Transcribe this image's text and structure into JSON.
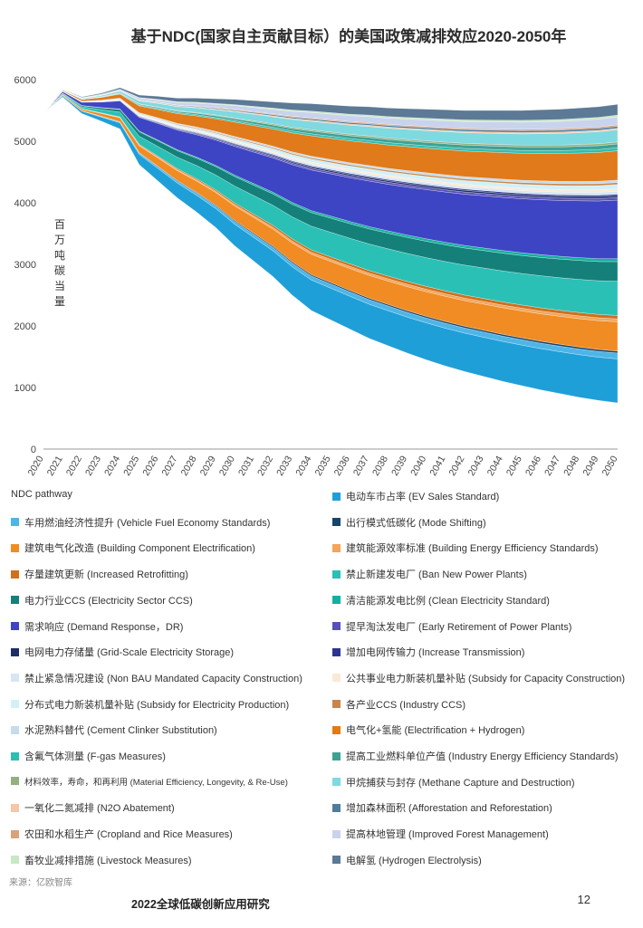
{
  "title": "基于NDC(国家自主贡献目标）的美国政策减排效应2020-2050年",
  "source": "来源：亿欧智库",
  "footer": "2022全球低碳创新应用研究",
  "page_number": "12",
  "chart_data": {
    "type": "area",
    "title": "基于NDC(国家自主贡献目标）的美国政策减排效应2020-2050年",
    "ylabel": "百万吨碳当量",
    "ylim": [
      0,
      6000
    ],
    "yticks": [
      0,
      1000,
      2000,
      3000,
      4000,
      5000,
      6000
    ],
    "x": [
      2020,
      2021,
      2022,
      2023,
      2024,
      2025,
      2026,
      2027,
      2028,
      2029,
      2030,
      2031,
      2032,
      2033,
      2034,
      2035,
      2036,
      2037,
      2038,
      2039,
      2040,
      2041,
      2042,
      2043,
      2044,
      2045,
      2046,
      2047,
      2048,
      2049,
      2050
    ],
    "top_envelope": [
      5450,
      5850,
      5720,
      5780,
      5870,
      5750,
      5730,
      5700,
      5700,
      5690,
      5680,
      5660,
      5640,
      5620,
      5610,
      5590,
      5570,
      5560,
      5540,
      5530,
      5520,
      5510,
      5500,
      5500,
      5500,
      5500,
      5510,
      5520,
      5540,
      5560,
      5600
    ],
    "baseline_pathway": [
      5450,
      5720,
      5450,
      5330,
      5200,
      4620,
      4350,
      4080,
      3850,
      3600,
      3300,
      3050,
      2800,
      2500,
      2250,
      2100,
      1950,
      1800,
      1680,
      1560,
      1450,
      1350,
      1260,
      1180,
      1100,
      1030,
      960,
      900,
      840,
      790,
      750
    ],
    "series": [
      {
        "name": "NDC pathway",
        "color": "#1f9fd8"
      },
      {
        "name": "电动车市占率 (EV Sales Standard)",
        "color": "#1f9fd8"
      },
      {
        "name": "车用燃油经济性提升 (Vehicle Fuel Economy Standards)",
        "color": "#4fb5e6"
      },
      {
        "name": "出行模式低碳化 (Mode Shifting)",
        "color": "#17446b"
      },
      {
        "name": "建筑电气化改造 (Building Component Electrification)",
        "color": "#f08c23"
      },
      {
        "name": "建筑能源效率标准 (Building Energy Efficiency Standards)",
        "color": "#f3a55a"
      },
      {
        "name": "存量建筑更新 (Increased Retrofitting)",
        "color": "#d0701c"
      },
      {
        "name": "禁止新建发电厂 (Ban New Power Plants)",
        "color": "#2ac0b5"
      },
      {
        "name": "电力行业CCS (Electricity Sector CCS)",
        "color": "#15807a"
      },
      {
        "name": "清洁能源发电比例 (Clean Electricity Standard)",
        "color": "#13b0a0"
      },
      {
        "name": "需求响应 (Demand Response，DR)",
        "color": "#3d45c4"
      },
      {
        "name": "提早淘汰发电厂 (Early Retirement of Power Plants)",
        "color": "#5a4fb8"
      },
      {
        "name": "电网电力存储量 (Grid-Scale Electricity Storage)",
        "color": "#1c2e66"
      },
      {
        "name": "增加电网传输力 (Increase Transmission)",
        "color": "#2b3590"
      },
      {
        "name": "禁止紧急情况建设 (Non BAU Mandated Capacity Construction)",
        "color": "#d6e6f5"
      },
      {
        "name": "公共事业电力新装机量补贴 (Subsidy for Capacity Construction)",
        "color": "#fbe9d6"
      },
      {
        "name": "分布式电力新装机量补贴 (Subsidy for Electricity Production)",
        "color": "#d2f1f7"
      },
      {
        "name": "各产业CCS (Industry CCS)",
        "color": "#c8864a"
      },
      {
        "name": "水泥熟料替代 (Cement Clinker Substitution)",
        "color": "#c5dced"
      },
      {
        "name": "电气化+氢能 (Electrification + Hydrogen)",
        "color": "#e07a1a"
      },
      {
        "name": "含氟气体测量 (F-gas Measures)",
        "color": "#2bbfb0"
      },
      {
        "name": "提高工业燃料单位产值 (Industry Energy Efficiency Standards)",
        "color": "#3fa195"
      },
      {
        "name": "材料效率，寿命，和再利用 (Material Efficiency, Longevity, & Re-Use)",
        "color": "#93b07f"
      },
      {
        "name": "甲烷捕获与封存 (Methane Capture and Destruction)",
        "color": "#7fd9e0"
      },
      {
        "name": "一氧化二氮减排 (N2O Abatement)",
        "color": "#f5c7a6"
      },
      {
        "name": "增加森林面积 (Afforestation and Reforestation)",
        "color": "#4f7d9a"
      },
      {
        "name": "农田和水稻生产 (Cropland and Rice Measures)",
        "color": "#d9a27a"
      },
      {
        "name": "提高林地管理 (Improved Forest Management)",
        "color": "#c9d3ee"
      },
      {
        "name": "畜牧业减排措施 (Livestock Measures)",
        "color": "#c8e8c3"
      },
      {
        "name": "电解氢 (Hydrogen Electrolysis)",
        "color": "#5c7995"
      }
    ],
    "legend_placement": "bottom"
  }
}
